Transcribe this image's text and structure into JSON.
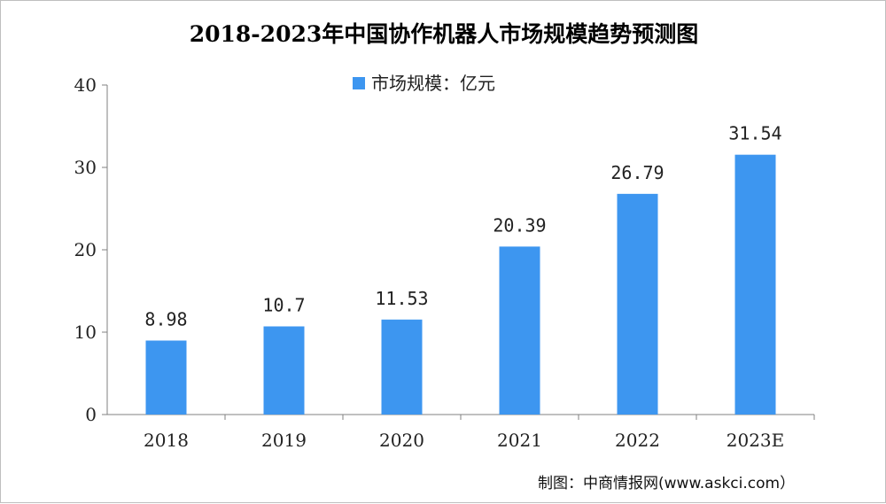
{
  "chart_data": {
    "type": "bar",
    "title": "2018-2023年中国协作机器人市场规模趋势预测图",
    "categories": [
      "2018",
      "2019",
      "2020",
      "2021",
      "2022",
      "2023E"
    ],
    "series": [
      {
        "name": "市场规模：亿元",
        "values": [
          8.98,
          10.7,
          11.53,
          20.39,
          26.79,
          31.54
        ],
        "data_labels": [
          "8.98",
          "10.7",
          "11.53",
          "20.39",
          "26.79",
          "31.54"
        ]
      }
    ],
    "yticks": [
      "0",
      "10",
      "20",
      "30",
      "40"
    ],
    "ylim": [
      0,
      40
    ],
    "grid": false,
    "legend_position": "top-center",
    "bar_color": "#3d96f0",
    "axis_color": "#808080"
  },
  "source": "制图：中商情报网(www.askci.com）"
}
